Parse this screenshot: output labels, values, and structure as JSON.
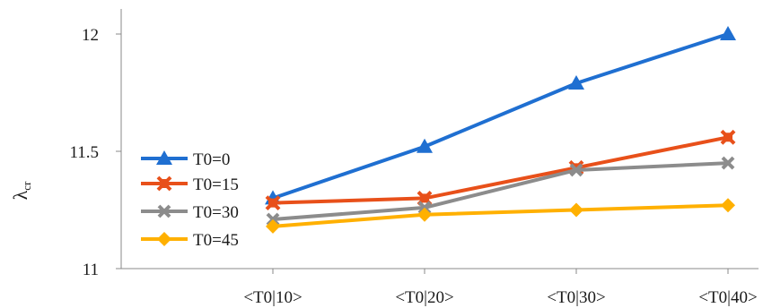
{
  "chart_data": {
    "type": "line",
    "title": "",
    "xlabel": "",
    "ylabel": "λ",
    "ylabel_subscript": "cr",
    "categories": [
      "<T0|10>",
      "<T0|20>",
      "<T0|30>",
      "<T0|40>"
    ],
    "ylim": [
      11,
      12
    ],
    "yticks": [
      11,
      11.5,
      12
    ],
    "ytick_labels": [
      "11",
      "11.5",
      "12"
    ],
    "grid": false,
    "legend_position": "left",
    "series": [
      {
        "name": "T0=0",
        "color": "#1f6fd1",
        "marker": "triangle",
        "values": [
          11.3,
          11.52,
          11.79,
          12.0
        ]
      },
      {
        "name": "T0=15",
        "color": "#e8501a",
        "marker": "x-square",
        "values": [
          11.28,
          11.3,
          11.43,
          11.56
        ]
      },
      {
        "name": "T0=30",
        "color": "#8c8c8c",
        "marker": "x",
        "values": [
          11.21,
          11.26,
          11.42,
          11.45
        ]
      },
      {
        "name": "T0=45",
        "color": "#ffb000",
        "marker": "diamond",
        "values": [
          11.18,
          11.23,
          11.25,
          11.27
        ]
      }
    ]
  }
}
